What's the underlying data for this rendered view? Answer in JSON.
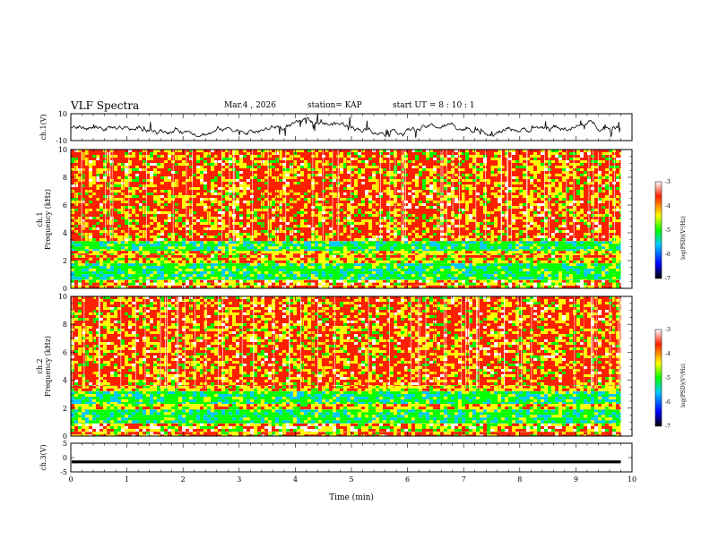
{
  "header": {
    "title": "VLF Spectra",
    "date": "Mar.4 , 2026",
    "station": "station= KAP",
    "start": "start  UT =  8 : 10 : 1"
  },
  "chart_data": [
    {
      "type": "line",
      "panel": "ch1-waveform",
      "ylabel": "ch.1(V)",
      "ylim": [
        -10,
        10
      ],
      "yticks": [
        "10",
        "-10"
      ],
      "xlim": [
        0,
        10
      ],
      "series": [
        {
          "name": "ch.1",
          "x_range": [
            0,
            9.8
          ],
          "baseline": 0,
          "noise_amplitude": 5
        }
      ]
    },
    {
      "type": "heatmap",
      "panel": "ch1-spectrogram",
      "ylabel": [
        "ch.1",
        "Frequency (kHz)"
      ],
      "ylim": [
        0,
        10
      ],
      "yticks": [
        "0",
        "2",
        "4",
        "6",
        "8",
        "10"
      ],
      "xlim": [
        0,
        9.8
      ],
      "bands_khz": [
        {
          "from": 0.0,
          "to": 0.2,
          "level": "high"
        },
        {
          "from": 0.2,
          "to": 0.6,
          "level": "mixed"
        },
        {
          "from": 0.6,
          "to": 1.8,
          "level": "low"
        },
        {
          "from": 1.8,
          "to": 2.2,
          "level": "mid"
        },
        {
          "from": 2.2,
          "to": 2.4,
          "level": "high"
        },
        {
          "from": 2.4,
          "to": 2.7,
          "level": "mid"
        },
        {
          "from": 2.7,
          "to": 3.4,
          "level": "low"
        },
        {
          "from": 3.4,
          "to": 10.0,
          "level": "high"
        }
      ],
      "colorbar": {
        "label": "log(PSD)(V²/Hz)",
        "min": -7,
        "max": -3,
        "ticks": [
          "-3",
          "-4",
          "-5",
          "-6",
          "-7"
        ]
      }
    },
    {
      "type": "heatmap",
      "panel": "ch2-spectrogram",
      "ylabel": [
        "ch.2",
        "Frequency (kHz)"
      ],
      "ylim": [
        0,
        10
      ],
      "yticks": [
        "0",
        "2",
        "4",
        "6",
        "8",
        "10"
      ],
      "xlim": [
        0,
        9.8
      ],
      "bands_khz": [
        {
          "from": 0.0,
          "to": 0.3,
          "level": "high"
        },
        {
          "from": 0.3,
          "to": 0.9,
          "level": "mixed"
        },
        {
          "from": 0.9,
          "to": 1.9,
          "level": "low"
        },
        {
          "from": 1.9,
          "to": 2.3,
          "level": "mid"
        },
        {
          "from": 2.3,
          "to": 3.2,
          "level": "low"
        },
        {
          "from": 3.2,
          "to": 3.6,
          "level": "mid"
        },
        {
          "from": 3.6,
          "to": 10.0,
          "level": "high"
        }
      ],
      "colorbar": {
        "label": "log(PSD)(V²/Hz)",
        "min": -7,
        "max": -3,
        "ticks": [
          "-3",
          "-4",
          "-5",
          "-6",
          "-7"
        ]
      }
    },
    {
      "type": "line",
      "panel": "ch3-waveform",
      "ylabel": "ch.3(V)",
      "ylim": [
        -5,
        5
      ],
      "yticks": [
        "5",
        "0",
        "-5"
      ],
      "xlim": [
        0,
        10
      ],
      "xticks": [
        "0",
        "1",
        "2",
        "3",
        "4",
        "5",
        "6",
        "7",
        "8",
        "9",
        "10"
      ],
      "xlabel": "Time (min)",
      "series": [
        {
          "name": "ch.3",
          "x_range": [
            0,
            9.8
          ],
          "value": -1.5,
          "band_low": -2.0,
          "band_high": -1.0
        }
      ]
    }
  ],
  "colors": {
    "colormap": [
      "#000000",
      "#0000ff",
      "#00c8ff",
      "#00ff00",
      "#ffff00",
      "#ff2000",
      "#ffffff"
    ],
    "axis": "#000000",
    "trace": "#000000"
  }
}
